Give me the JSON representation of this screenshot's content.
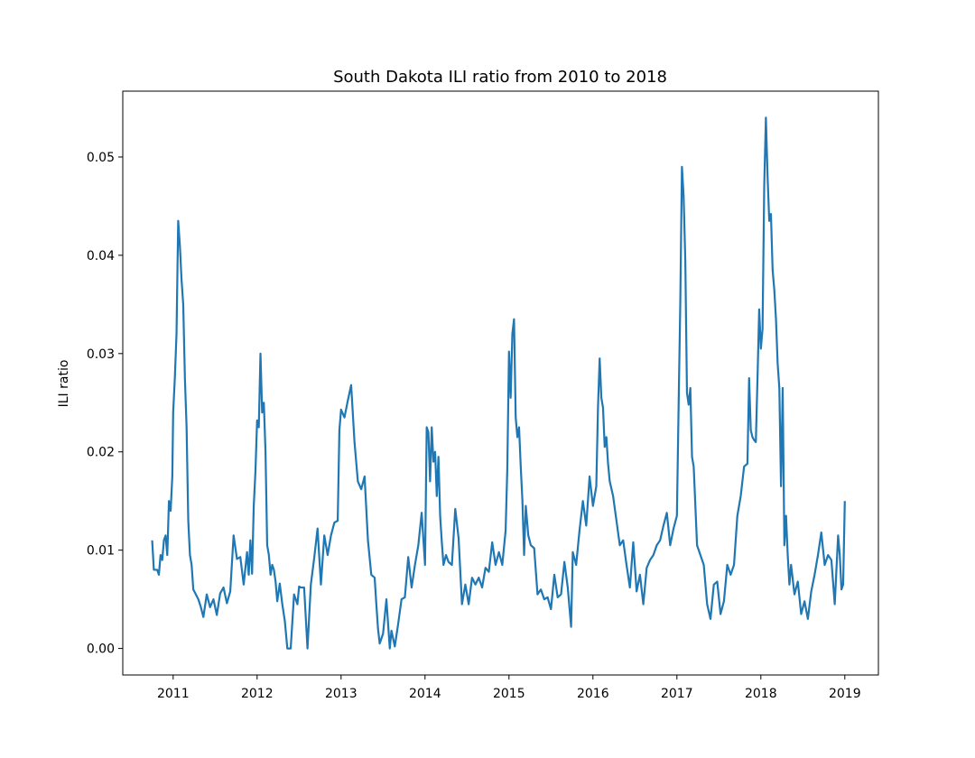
{
  "chart_data": {
    "type": "line",
    "title": "South Dakota ILI ratio from 2010 to 2018",
    "xlabel": "",
    "ylabel": "ILI ratio",
    "xlim": [
      2010.4,
      2019.4
    ],
    "ylim": [
      -0.0027,
      0.0567
    ],
    "x_ticks": [
      2011,
      2012,
      2013,
      2014,
      2015,
      2016,
      2017,
      2018,
      2019
    ],
    "x_tick_labels": [
      "2011",
      "2012",
      "2013",
      "2014",
      "2015",
      "2016",
      "2017",
      "2018",
      "2019"
    ],
    "y_ticks": [
      0.0,
      0.01,
      0.02,
      0.03,
      0.04,
      0.05
    ],
    "y_tick_labels": [
      "0.00",
      "0.01",
      "0.02",
      "0.03",
      "0.04",
      "0.05"
    ],
    "grid": false,
    "legend": "none",
    "series": [
      {
        "color": "#1f77b4",
        "x": [
          2010.75,
          2010.77,
          2010.79,
          2010.81,
          2010.83,
          2010.85,
          2010.87,
          2010.89,
          2010.91,
          2010.93,
          2010.95,
          2010.97,
          2010.99,
          2011.0,
          2011.02,
          2011.04,
          2011.06,
          2011.08,
          2011.1,
          2011.12,
          2011.14,
          2011.16,
          2011.18,
          2011.2,
          2011.22,
          2011.24,
          2011.27,
          2011.3,
          2011.33,
          2011.36,
          2011.4,
          2011.44,
          2011.48,
          2011.52,
          2011.56,
          2011.6,
          2011.64,
          2011.68,
          2011.72,
          2011.76,
          2011.8,
          2011.84,
          2011.88,
          2011.9,
          2011.92,
          2011.94,
          2011.96,
          2011.98,
          2012.0,
          2012.02,
          2012.04,
          2012.06,
          2012.08,
          2012.1,
          2012.12,
          2012.14,
          2012.16,
          2012.18,
          2012.2,
          2012.22,
          2012.24,
          2012.27,
          2012.3,
          2012.33,
          2012.36,
          2012.4,
          2012.44,
          2012.48,
          2012.5,
          2012.52,
          2012.56,
          2012.6,
          2012.64,
          2012.68,
          2012.72,
          2012.76,
          2012.8,
          2012.84,
          2012.88,
          2012.92,
          2012.96,
          2012.98,
          2013.0,
          2013.04,
          2013.08,
          2013.1,
          2013.12,
          2013.16,
          2013.2,
          2013.24,
          2013.28,
          2013.32,
          2013.36,
          2013.4,
          2013.42,
          2013.44,
          2013.46,
          2013.5,
          2013.54,
          2013.58,
          2013.6,
          2013.64,
          2013.68,
          2013.72,
          2013.76,
          2013.8,
          2013.84,
          2013.88,
          2013.92,
          2013.96,
          2014.0,
          2014.02,
          2014.04,
          2014.06,
          2014.08,
          2014.1,
          2014.12,
          2014.14,
          2014.16,
          2014.18,
          2014.2,
          2014.22,
          2014.25,
          2014.28,
          2014.32,
          2014.36,
          2014.4,
          2014.44,
          2014.48,
          2014.52,
          2014.56,
          2014.6,
          2014.64,
          2014.68,
          2014.72,
          2014.76,
          2014.8,
          2014.84,
          2014.88,
          2014.92,
          2014.96,
          2014.98,
          2015.0,
          2015.02,
          2015.04,
          2015.06,
          2015.08,
          2015.1,
          2015.12,
          2015.14,
          2015.16,
          2015.18,
          2015.2,
          2015.23,
          2015.26,
          2015.3,
          2015.34,
          2015.38,
          2015.42,
          2015.46,
          2015.5,
          2015.54,
          2015.58,
          2015.62,
          2015.66,
          2015.7,
          2015.74,
          2015.76,
          2015.8,
          2015.84,
          2015.88,
          2015.92,
          2015.96,
          2016.0,
          2016.04,
          2016.06,
          2016.08,
          2016.1,
          2016.12,
          2016.14,
          2016.16,
          2016.18,
          2016.2,
          2016.24,
          2016.28,
          2016.32,
          2016.36,
          2016.4,
          2016.44,
          2016.48,
          2016.52,
          2016.56,
          2016.6,
          2016.64,
          2016.68,
          2016.72,
          2016.76,
          2016.8,
          2016.84,
          2016.88,
          2016.92,
          2016.96,
          2017.0,
          2017.02,
          2017.04,
          2017.06,
          2017.08,
          2017.1,
          2017.12,
          2017.14,
          2017.16,
          2017.18,
          2017.2,
          2017.24,
          2017.28,
          2017.32,
          2017.36,
          2017.4,
          2017.44,
          2017.48,
          2017.52,
          2017.56,
          2017.6,
          2017.64,
          2017.68,
          2017.72,
          2017.76,
          2017.8,
          2017.84,
          2017.86,
          2017.88,
          2017.9,
          2017.92,
          2017.94,
          2017.96,
          2017.98,
          2018.0,
          2018.02,
          2018.04,
          2018.06,
          2018.08,
          2018.1,
          2018.12,
          2018.14,
          2018.16,
          2018.18,
          2018.2,
          2018.22,
          2018.24,
          2018.26,
          2018.28,
          2018.3,
          2018.32,
          2018.34,
          2018.36,
          2018.4,
          2018.44,
          2018.48,
          2018.52,
          2018.56,
          2018.6,
          2018.64,
          2018.68,
          2018.72,
          2018.76,
          2018.8,
          2018.84,
          2018.88,
          2018.92,
          2018.94,
          2018.96,
          2018.98,
          2019.0
        ],
        "y": [
          0.011,
          0.008,
          0.008,
          0.008,
          0.0075,
          0.0095,
          0.009,
          0.011,
          0.0115,
          0.0095,
          0.015,
          0.014,
          0.0175,
          0.024,
          0.0275,
          0.032,
          0.0435,
          0.041,
          0.0375,
          0.035,
          0.0275,
          0.0225,
          0.013,
          0.0095,
          0.0085,
          0.006,
          0.0055,
          0.005,
          0.0042,
          0.0032,
          0.0055,
          0.0042,
          0.005,
          0.0034,
          0.0056,
          0.0062,
          0.0046,
          0.0058,
          0.0115,
          0.0091,
          0.0093,
          0.0065,
          0.0098,
          0.0075,
          0.011,
          0.0076,
          0.0145,
          0.018,
          0.0232,
          0.0225,
          0.03,
          0.024,
          0.025,
          0.02,
          0.0105,
          0.0095,
          0.0075,
          0.0085,
          0.008,
          0.0068,
          0.0048,
          0.0066,
          0.0045,
          0.0028,
          0.0,
          0.0,
          0.0055,
          0.0045,
          0.0063,
          0.0062,
          0.0062,
          0.0,
          0.0065,
          0.0092,
          0.0122,
          0.0065,
          0.0115,
          0.0095,
          0.0115,
          0.0128,
          0.013,
          0.0222,
          0.0243,
          0.0235,
          0.0252,
          0.026,
          0.0268,
          0.021,
          0.017,
          0.0162,
          0.0175,
          0.011,
          0.0075,
          0.0072,
          0.0045,
          0.002,
          0.0005,
          0.0015,
          0.005,
          0.0,
          0.0018,
          0.0002,
          0.0025,
          0.005,
          0.0052,
          0.0093,
          0.0062,
          0.0085,
          0.0105,
          0.0138,
          0.0085,
          0.0225,
          0.022,
          0.017,
          0.0225,
          0.019,
          0.02,
          0.0155,
          0.0195,
          0.0135,
          0.0108,
          0.0085,
          0.0095,
          0.0088,
          0.0085,
          0.0142,
          0.0112,
          0.0045,
          0.0065,
          0.0045,
          0.0072,
          0.0065,
          0.0072,
          0.0062,
          0.0082,
          0.0078,
          0.0108,
          0.0085,
          0.0098,
          0.0085,
          0.012,
          0.0183,
          0.0302,
          0.0255,
          0.032,
          0.0335,
          0.0235,
          0.0215,
          0.0225,
          0.0185,
          0.015,
          0.0095,
          0.0145,
          0.0115,
          0.0105,
          0.0102,
          0.0055,
          0.006,
          0.005,
          0.0052,
          0.004,
          0.0075,
          0.0052,
          0.0055,
          0.0088,
          0.0062,
          0.0022,
          0.0098,
          0.0085,
          0.012,
          0.015,
          0.0125,
          0.0175,
          0.0145,
          0.0165,
          0.0245,
          0.0295,
          0.0255,
          0.0245,
          0.0205,
          0.0215,
          0.0188,
          0.017,
          0.0155,
          0.013,
          0.0105,
          0.011,
          0.0085,
          0.0062,
          0.0108,
          0.0058,
          0.0075,
          0.0045,
          0.0082,
          0.009,
          0.0095,
          0.0105,
          0.011,
          0.0125,
          0.0138,
          0.0105,
          0.0122,
          0.0135,
          0.0245,
          0.035,
          0.049,
          0.046,
          0.0395,
          0.026,
          0.0248,
          0.0265,
          0.0195,
          0.0185,
          0.0105,
          0.0095,
          0.0085,
          0.0045,
          0.003,
          0.0065,
          0.0068,
          0.0035,
          0.0048,
          0.0085,
          0.0075,
          0.0085,
          0.0135,
          0.0155,
          0.0185,
          0.0188,
          0.0275,
          0.0222,
          0.0215,
          0.0212,
          0.021,
          0.0275,
          0.0345,
          0.0305,
          0.0325,
          0.047,
          0.054,
          0.048,
          0.0435,
          0.0442,
          0.0385,
          0.0365,
          0.0335,
          0.029,
          0.0265,
          0.0165,
          0.0265,
          0.0105,
          0.0135,
          0.0095,
          0.0065,
          0.0085,
          0.0055,
          0.0068,
          0.0035,
          0.0048,
          0.003,
          0.0058,
          0.0075,
          0.0095,
          0.0118,
          0.0085,
          0.0095,
          0.009,
          0.0045,
          0.0115,
          0.0095,
          0.006,
          0.0065,
          0.015
        ]
      }
    ]
  }
}
